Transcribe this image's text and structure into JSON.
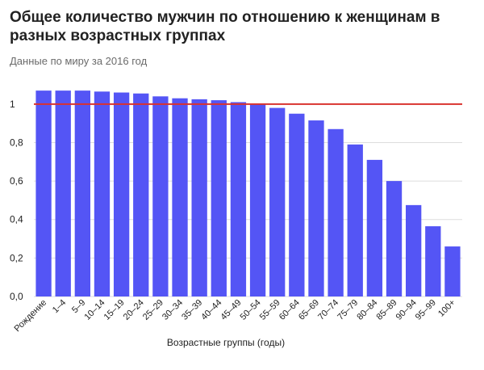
{
  "title": "Общее количество мужчин по отношению к женщинам в разных возрастных группах",
  "subtitle": "Данные по миру за 2016 год",
  "colors": {
    "bar": "#5455F5",
    "reference_line": "#D9322E",
    "grid": "#DDDDDD"
  },
  "chart_data": {
    "type": "bar",
    "title": "Общее количество мужчин по отношению к женщинам в разных возрастных группах",
    "subtitle": "Данные по миру за 2016 год",
    "xlabel": "Возрастные группы (годы)",
    "ylabel": "",
    "ylim": [
      0,
      1.1
    ],
    "yticks": [
      "0,0",
      "0,2",
      "0,4",
      "0,6",
      "0,8",
      "1"
    ],
    "ytick_values": [
      0,
      0.2,
      0.4,
      0.6,
      0.8,
      1.0
    ],
    "grid": true,
    "reference_line": 1.0,
    "categories": [
      "Рождение",
      "1–4",
      "5–9",
      "10–14",
      "15–19",
      "20–24",
      "25–29",
      "30–34",
      "35–39",
      "40–44",
      "45–49",
      "50–54",
      "55–59",
      "60–64",
      "65–69",
      "70–74",
      "75–79",
      "80–84",
      "85–89",
      "90–94",
      "95–99",
      "100+"
    ],
    "values": [
      1.07,
      1.07,
      1.07,
      1.065,
      1.06,
      1.055,
      1.04,
      1.03,
      1.025,
      1.02,
      1.01,
      1.0,
      0.98,
      0.95,
      0.915,
      0.87,
      0.79,
      0.71,
      0.6,
      0.475,
      0.365,
      0.26
    ]
  }
}
